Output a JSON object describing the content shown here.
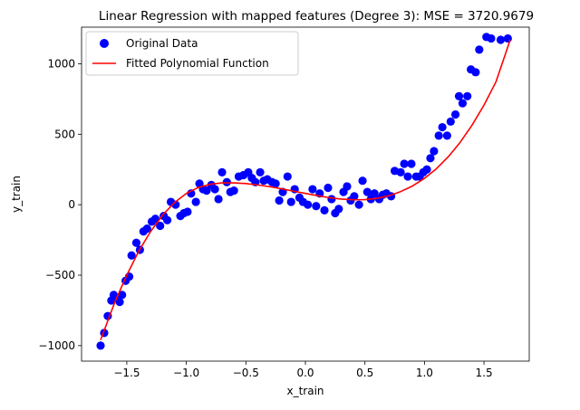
{
  "chart_data": {
    "type": "scatter",
    "title": "Linear Regression with mapped features (Degree 3): MSE = 3720.9679",
    "xlabel": "x_train",
    "ylabel": "y_train",
    "xlim": [
      -1.88,
      1.88
    ],
    "ylim": [
      -1110,
      1260
    ],
    "xticks": [
      -1.5,
      -1.0,
      -0.5,
      0.0,
      0.5,
      1.0,
      1.5
    ],
    "xtick_labels": [
      "−1.5",
      "−1.0",
      "−0.5",
      "0.0",
      "0.5",
      "1.0",
      "1.5"
    ],
    "yticks": [
      -1000,
      -500,
      0,
      500,
      1000
    ],
    "ytick_labels": [
      "−1000",
      "−500",
      "0",
      "500",
      "1000"
    ],
    "grid": false,
    "legend_position": "top-left",
    "legend": [
      "Original Data",
      "Fitted Polynomial Function"
    ],
    "series": [
      {
        "name": "Original Data",
        "kind": "scatter",
        "color": "#0000ff",
        "points": [
          [
            -1.72,
            -1000
          ],
          [
            -1.69,
            -910
          ],
          [
            -1.66,
            -790
          ],
          [
            -1.63,
            -680
          ],
          [
            -1.61,
            -640
          ],
          [
            -1.59,
            -660
          ],
          [
            -1.56,
            -690
          ],
          [
            -1.54,
            -640
          ],
          [
            -1.51,
            -540
          ],
          [
            -1.48,
            -510
          ],
          [
            -1.46,
            -360
          ],
          [
            -1.42,
            -270
          ],
          [
            -1.39,
            -320
          ],
          [
            -1.36,
            -190
          ],
          [
            -1.33,
            -170
          ],
          [
            -1.29,
            -120
          ],
          [
            -1.26,
            -100
          ],
          [
            -1.22,
            -150
          ],
          [
            -1.19,
            -80
          ],
          [
            -1.16,
            -110
          ],
          [
            -1.13,
            20
          ],
          [
            -1.09,
            0
          ],
          [
            -1.05,
            -80
          ],
          [
            -1.02,
            -60
          ],
          [
            -0.99,
            -50
          ],
          [
            -0.96,
            80
          ],
          [
            -0.92,
            20
          ],
          [
            -0.89,
            150
          ],
          [
            -0.86,
            110
          ],
          [
            -0.83,
            100
          ],
          [
            -0.79,
            140
          ],
          [
            -0.76,
            110
          ],
          [
            -0.73,
            40
          ],
          [
            -0.7,
            230
          ],
          [
            -0.66,
            160
          ],
          [
            -0.63,
            90
          ],
          [
            -0.6,
            100
          ],
          [
            -0.56,
            200
          ],
          [
            -0.52,
            210
          ],
          [
            -0.48,
            230
          ],
          [
            -0.45,
            190
          ],
          [
            -0.42,
            160
          ],
          [
            -0.38,
            230
          ],
          [
            -0.35,
            170
          ],
          [
            -0.32,
            180
          ],
          [
            -0.28,
            160
          ],
          [
            -0.25,
            150
          ],
          [
            -0.22,
            30
          ],
          [
            -0.19,
            90
          ],
          [
            -0.15,
            200
          ],
          [
            -0.12,
            20
          ],
          [
            -0.09,
            110
          ],
          [
            -0.05,
            50
          ],
          [
            -0.02,
            20
          ],
          [
            0.02,
            0
          ],
          [
            0.06,
            110
          ],
          [
            0.09,
            -10
          ],
          [
            0.12,
            80
          ],
          [
            0.16,
            -40
          ],
          [
            0.19,
            120
          ],
          [
            0.22,
            40
          ],
          [
            0.25,
            -60
          ],
          [
            0.28,
            -30
          ],
          [
            0.32,
            90
          ],
          [
            0.35,
            130
          ],
          [
            0.38,
            30
          ],
          [
            0.41,
            60
          ],
          [
            0.45,
            0
          ],
          [
            0.48,
            170
          ],
          [
            0.52,
            90
          ],
          [
            0.55,
            40
          ],
          [
            0.58,
            80
          ],
          [
            0.62,
            40
          ],
          [
            0.65,
            70
          ],
          [
            0.68,
            80
          ],
          [
            0.72,
            60
          ],
          [
            0.75,
            240
          ],
          [
            0.8,
            230
          ],
          [
            0.83,
            290
          ],
          [
            0.86,
            200
          ],
          [
            0.89,
            290
          ],
          [
            0.93,
            200
          ],
          [
            0.96,
            200
          ],
          [
            0.99,
            230
          ],
          [
            1.02,
            250
          ],
          [
            1.05,
            330
          ],
          [
            1.08,
            380
          ],
          [
            1.12,
            490
          ],
          [
            1.15,
            550
          ],
          [
            1.19,
            490
          ],
          [
            1.22,
            590
          ],
          [
            1.26,
            640
          ],
          [
            1.29,
            770
          ],
          [
            1.32,
            720
          ],
          [
            1.36,
            770
          ],
          [
            1.39,
            960
          ],
          [
            1.43,
            940
          ],
          [
            1.46,
            1100
          ],
          [
            1.52,
            1190
          ],
          [
            1.56,
            1180
          ],
          [
            1.64,
            1170
          ],
          [
            1.7,
            1180
          ]
        ]
      },
      {
        "name": "Fitted Polynomial Function",
        "kind": "line",
        "color": "#ff0000",
        "points": [
          [
            -1.72,
            -960
          ],
          [
            -1.6,
            -690
          ],
          [
            -1.5,
            -500
          ],
          [
            -1.4,
            -330
          ],
          [
            -1.3,
            -190
          ],
          [
            -1.2,
            -75
          ],
          [
            -1.1,
            15
          ],
          [
            -1.0,
            80
          ],
          [
            -0.9,
            122
          ],
          [
            -0.8,
            145
          ],
          [
            -0.7,
            155
          ],
          [
            -0.6,
            155
          ],
          [
            -0.5,
            150
          ],
          [
            -0.4,
            140
          ],
          [
            -0.3,
            128
          ],
          [
            -0.2,
            113
          ],
          [
            -0.1,
            96
          ],
          [
            0.0,
            80
          ],
          [
            0.1,
            64
          ],
          [
            0.2,
            50
          ],
          [
            0.3,
            40
          ],
          [
            0.4,
            35
          ],
          [
            0.5,
            36
          ],
          [
            0.6,
            45
          ],
          [
            0.7,
            63
          ],
          [
            0.8,
            93
          ],
          [
            0.9,
            133
          ],
          [
            1.0,
            187
          ],
          [
            1.1,
            255
          ],
          [
            1.2,
            340
          ],
          [
            1.3,
            443
          ],
          [
            1.4,
            565
          ],
          [
            1.5,
            707
          ],
          [
            1.6,
            871
          ],
          [
            1.72,
            1170
          ]
        ]
      }
    ]
  }
}
